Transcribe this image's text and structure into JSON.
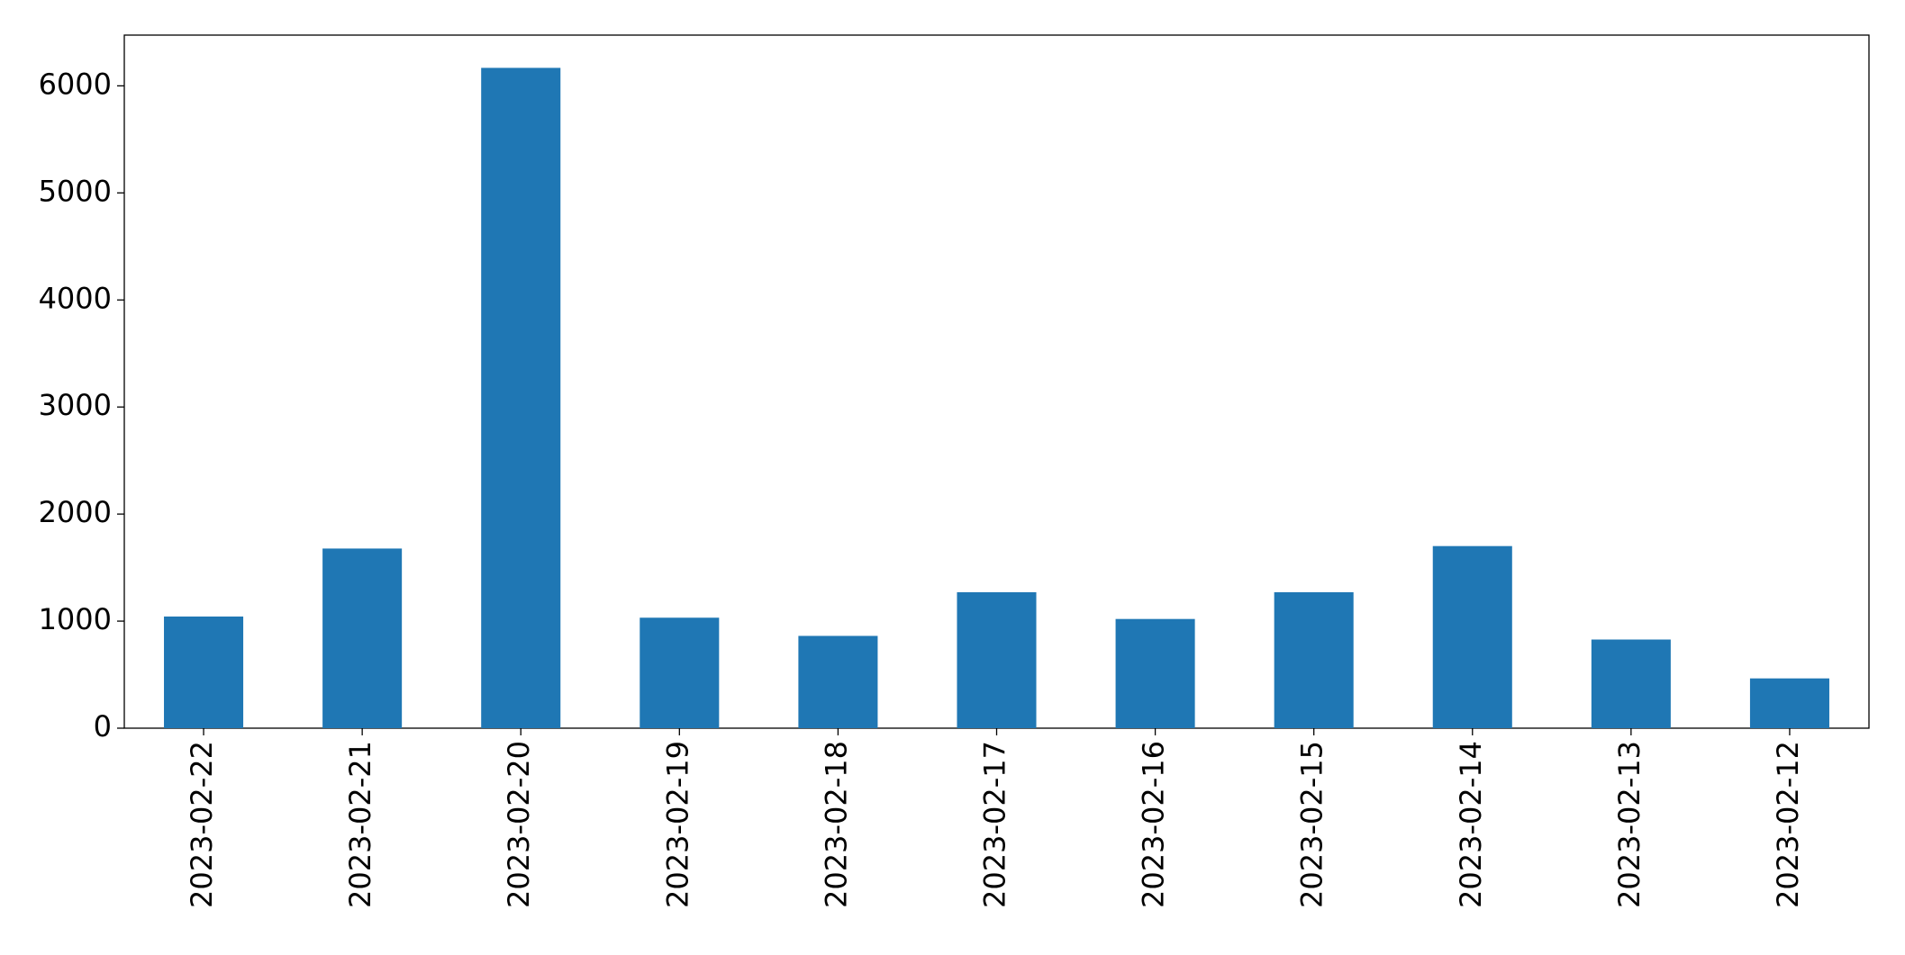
{
  "chart_data": {
    "type": "bar",
    "categories": [
      "2023-02-22",
      "2023-02-21",
      "2023-02-20",
      "2023-02-19",
      "2023-02-18",
      "2023-02-17",
      "2023-02-16",
      "2023-02-15",
      "2023-02-14",
      "2023-02-13",
      "2023-02-12"
    ],
    "values": [
      1043,
      1678,
      6168,
      1032,
      862,
      1270,
      1020,
      1270,
      1701,
      828,
      465
    ],
    "color": "#1f77b4",
    "ylim": [
      0,
      6474
    ],
    "yticks": [
      0,
      1000,
      2000,
      3000,
      4000,
      5000,
      6000
    ],
    "grid": false
  }
}
